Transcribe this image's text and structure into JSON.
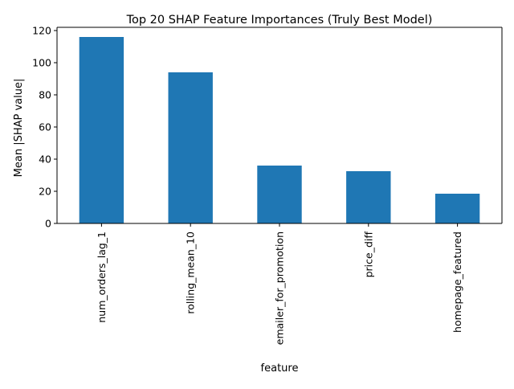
{
  "chart_data": {
    "type": "bar",
    "title": "Top 20 SHAP Feature Importances (Truly Best Model)",
    "xlabel": "feature",
    "ylabel": "Mean |SHAP value|",
    "categories": [
      "num_orders_lag_1",
      "rolling_mean_10",
      "emailer_for_promotion",
      "price_diff",
      "homepage_featured"
    ],
    "values": [
      116,
      94,
      36,
      32.5,
      18.5
    ],
    "ylim": [
      0,
      122
    ],
    "yticks": [
      0,
      20,
      40,
      60,
      80,
      100,
      120
    ],
    "grid": false,
    "legend": "none",
    "colors": {
      "bar": "#1f77b4",
      "axis": "#000000",
      "background": "#ffffff"
    }
  }
}
